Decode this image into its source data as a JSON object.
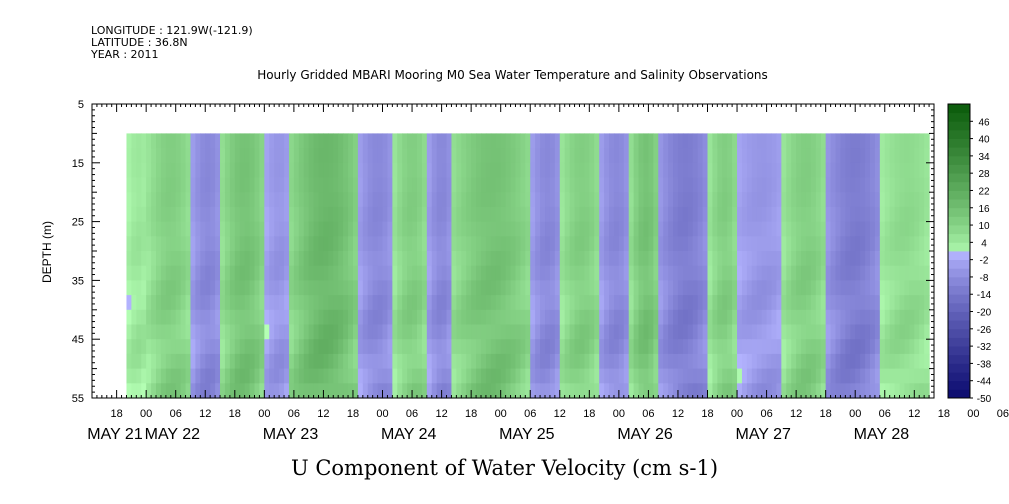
{
  "header": {
    "longitude": "LONGITUDE : 121.9W(-121.9)",
    "latitude": "LATITUDE : 36.8N",
    "year": "YEAR : 2011",
    "subtitle": "Hourly Gridded MBARI Mooring M0 Sea Water Temperature and Salinity Observations"
  },
  "chart_data": {
    "type": "heatmap",
    "title": "U Component of Water Velocity (cm s-1)",
    "ylabel": "DEPTH (m)",
    "xlabel": "",
    "y_ticks": [
      5,
      15,
      25,
      35,
      45,
      55
    ],
    "ylim": [
      55,
      5
    ],
    "data_depth_range": [
      10,
      55
    ],
    "x_hour_ticks": [
      "18",
      "00",
      "06",
      "12",
      "18",
      "00",
      "06",
      "12",
      "18",
      "00",
      "06",
      "12",
      "18",
      "00",
      "06",
      "12",
      "18",
      "00",
      "06",
      "12",
      "18",
      "00",
      "06",
      "12",
      "18",
      "00",
      "06",
      "12",
      "18",
      "00",
      "06",
      "12"
    ],
    "x_day_labels": [
      "MAY 21",
      "MAY 22",
      "MAY 23",
      "MAY 24",
      "MAY 25",
      "MAY 26",
      "MAY 27",
      "MAY 28"
    ],
    "xlim_hours": [
      "2011-05-21 13:00",
      "2011-05-28 16:00"
    ],
    "data_time_range": [
      "2011-05-21 20:00",
      "2011-05-28 15:00"
    ],
    "colorbar_labels": [
      46,
      40,
      34,
      28,
      22,
      16,
      10,
      4,
      -2,
      -8,
      -14,
      -20,
      -26,
      -32,
      -38,
      -44,
      -50
    ],
    "colorbar_range": [
      -50,
      52
    ],
    "colorbar_step": 3,
    "dominant_band_sequence": [
      {
        "start": "2011-05-21 20:00",
        "end": "2011-05-22 00:00",
        "u": 4
      },
      {
        "start": "2011-05-22 00:00",
        "end": "2011-05-22 09:00",
        "u": 10
      },
      {
        "start": "2011-05-22 09:00",
        "end": "2011-05-22 15:00",
        "u": -8
      },
      {
        "start": "2011-05-22 15:00",
        "end": "2011-05-23 00:00",
        "u": 13
      },
      {
        "start": "2011-05-23 00:00",
        "end": "2011-05-23 05:00",
        "u": -5
      },
      {
        "start": "2011-05-23 05:00",
        "end": "2011-05-23 19:00",
        "u": 16
      },
      {
        "start": "2011-05-23 19:00",
        "end": "2011-05-24 02:00",
        "u": -8
      },
      {
        "start": "2011-05-24 02:00",
        "end": "2011-05-24 09:00",
        "u": 10
      },
      {
        "start": "2011-05-24 09:00",
        "end": "2011-05-24 14:00",
        "u": -8
      },
      {
        "start": "2011-05-24 14:00",
        "end": "2011-05-25 06:00",
        "u": 13
      },
      {
        "start": "2011-05-25 06:00",
        "end": "2011-05-25 12:00",
        "u": -8
      },
      {
        "start": "2011-05-25 12:00",
        "end": "2011-05-25 20:00",
        "u": 10
      },
      {
        "start": "2011-05-25 20:00",
        "end": "2011-05-26 02:00",
        "u": -8
      },
      {
        "start": "2011-05-26 02:00",
        "end": "2011-05-26 08:00",
        "u": 13
      },
      {
        "start": "2011-05-26 08:00",
        "end": "2011-05-26 18:00",
        "u": -11
      },
      {
        "start": "2011-05-26 18:00",
        "end": "2011-05-27 00:00",
        "u": 10
      },
      {
        "start": "2011-05-27 00:00",
        "end": "2011-05-27 09:00",
        "u": -5
      },
      {
        "start": "2011-05-27 09:00",
        "end": "2011-05-27 18:00",
        "u": 10
      },
      {
        "start": "2011-05-27 18:00",
        "end": "2011-05-28 05:00",
        "u": -11
      },
      {
        "start": "2011-05-28 05:00",
        "end": "2011-05-28 15:00",
        "u": 7
      }
    ]
  },
  "colors": {
    "neg_dark": "#0a0a6e",
    "neg_light": "#b4b4ff",
    "pos_light": "#b4ffb4",
    "pos_dark": "#0a5a0a"
  }
}
